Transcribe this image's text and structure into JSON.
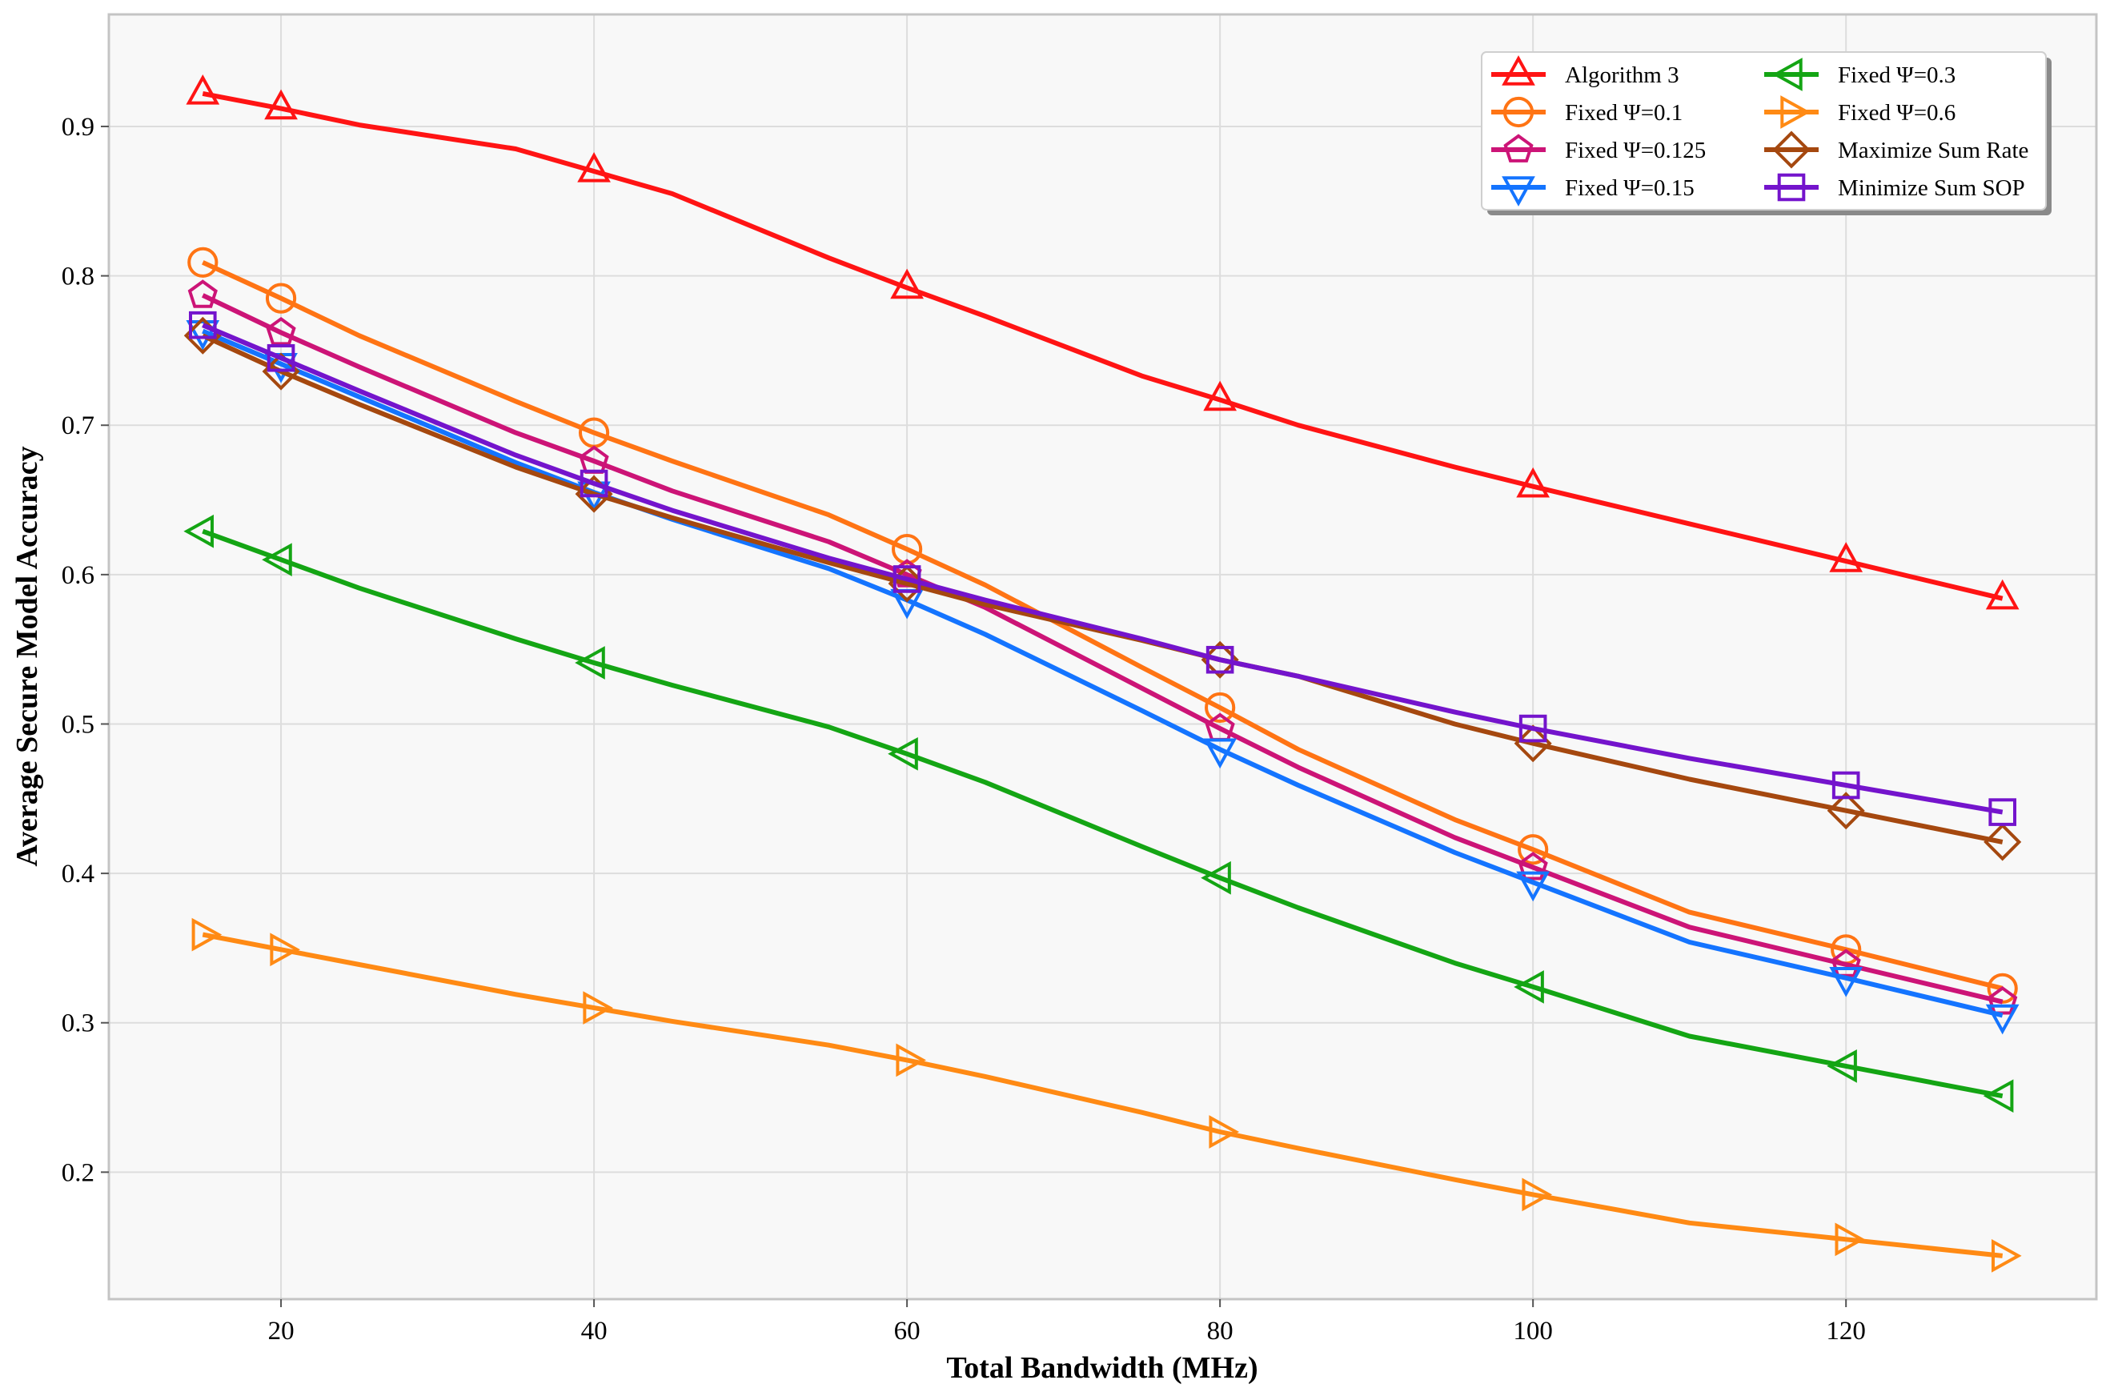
{
  "chart_data": {
    "type": "line",
    "title": "",
    "xlabel": "Total Bandwidth (MHz)",
    "ylabel": "Average Secure Model Accuracy",
    "xlim": [
      9,
      136
    ],
    "ylim": [
      0.115,
      0.975
    ],
    "xticks": [
      20,
      40,
      60,
      80,
      100,
      120
    ],
    "yticks": [
      0.2,
      0.3,
      0.4,
      0.5,
      0.6,
      0.7,
      0.8,
      0.9
    ],
    "grid": true,
    "legend_position": "top-right",
    "series": [
      {
        "name": "Algorithm 3",
        "color": "#ff1414",
        "marker": "triangle-up",
        "x": [
          15,
          20,
          25,
          35,
          40,
          45,
          55,
          60,
          65,
          75,
          80,
          85,
          95,
          100,
          110,
          120,
          130
        ],
        "y": [
          0.922,
          0.912,
          0.901,
          0.885,
          0.87,
          0.855,
          0.812,
          0.792,
          0.773,
          0.733,
          0.717,
          0.7,
          0.672,
          0.659,
          0.634,
          0.609,
          0.584
        ],
        "marker_x": [
          15,
          20,
          40,
          60,
          80,
          100,
          120,
          130
        ]
      },
      {
        "name": "Fixed Ψ=0.1",
        "color": "#ff7414",
        "marker": "circle",
        "x": [
          15,
          20,
          25,
          35,
          40,
          45,
          55,
          60,
          65,
          75,
          80,
          85,
          95,
          100,
          110,
          120,
          130
        ],
        "y": [
          0.809,
          0.785,
          0.76,
          0.716,
          0.695,
          0.676,
          0.64,
          0.617,
          0.593,
          0.538,
          0.511,
          0.483,
          0.436,
          0.416,
          0.374,
          0.349,
          0.323
        ],
        "marker_x": [
          15,
          20,
          40,
          60,
          80,
          100,
          120,
          130
        ]
      },
      {
        "name": "Fixed Ψ=0.125",
        "color": "#cc1477",
        "marker": "pentagon",
        "x": [
          15,
          20,
          25,
          35,
          40,
          45,
          55,
          60,
          65,
          75,
          80,
          85,
          95,
          100,
          110,
          120,
          130
        ],
        "y": [
          0.787,
          0.762,
          0.739,
          0.695,
          0.676,
          0.656,
          0.622,
          0.6,
          0.578,
          0.524,
          0.497,
          0.471,
          0.424,
          0.404,
          0.364,
          0.339,
          0.314
        ],
        "marker_x": [
          15,
          20,
          40,
          60,
          80,
          100,
          120,
          130
        ]
      },
      {
        "name": "Fixed Ψ=0.15",
        "color": "#1474ff",
        "marker": "triangle-down",
        "x": [
          15,
          20,
          25,
          35,
          40,
          45,
          55,
          60,
          65,
          75,
          80,
          85,
          95,
          100,
          110,
          120,
          130
        ],
        "y": [
          0.763,
          0.741,
          0.719,
          0.675,
          0.655,
          0.637,
          0.604,
          0.583,
          0.56,
          0.509,
          0.483,
          0.459,
          0.414,
          0.394,
          0.354,
          0.33,
          0.305
        ],
        "marker_x": [
          15,
          20,
          40,
          60,
          80,
          100,
          120,
          130
        ]
      },
      {
        "name": "Fixed Ψ=0.3",
        "color": "#14a514",
        "marker": "triangle-left",
        "x": [
          15,
          20,
          25,
          35,
          40,
          45,
          55,
          60,
          65,
          75,
          80,
          85,
          95,
          100,
          110,
          120,
          130
        ],
        "y": [
          0.629,
          0.61,
          0.591,
          0.557,
          0.541,
          0.526,
          0.498,
          0.48,
          0.461,
          0.418,
          0.397,
          0.377,
          0.34,
          0.324,
          0.291,
          0.271,
          0.251
        ],
        "marker_x": [
          15,
          20,
          40,
          60,
          80,
          100,
          120,
          130
        ]
      },
      {
        "name": "Fixed Ψ=0.6",
        "color": "#ff8a14",
        "marker": "triangle-right",
        "x": [
          15,
          20,
          25,
          35,
          40,
          45,
          55,
          60,
          65,
          75,
          80,
          85,
          95,
          100,
          110,
          120,
          130
        ],
        "y": [
          0.359,
          0.349,
          0.339,
          0.319,
          0.31,
          0.301,
          0.285,
          0.275,
          0.264,
          0.24,
          0.227,
          0.216,
          0.195,
          0.185,
          0.166,
          0.155,
          0.144
        ],
        "marker_x": [
          15,
          20,
          40,
          60,
          80,
          100,
          120,
          130
        ]
      },
      {
        "name": "Maximize Sum Rate",
        "color": "#a5480f",
        "marker": "diamond",
        "x": [
          15,
          20,
          25,
          35,
          40,
          45,
          55,
          60,
          65,
          75,
          80,
          85,
          95,
          100,
          110,
          120,
          130
        ],
        "y": [
          0.76,
          0.736,
          0.714,
          0.672,
          0.654,
          0.638,
          0.608,
          0.594,
          0.58,
          0.556,
          0.543,
          0.532,
          0.5,
          0.487,
          0.463,
          0.442,
          0.421
        ],
        "marker_x": [
          15,
          20,
          40,
          60,
          80,
          100,
          120,
          130
        ]
      },
      {
        "name": "Minimize Sum SOP",
        "color": "#7414cc",
        "marker": "square",
        "x": [
          15,
          20,
          25,
          35,
          40,
          45,
          55,
          60,
          65,
          75,
          80,
          85,
          95,
          100,
          110,
          120,
          130
        ],
        "y": [
          0.767,
          0.745,
          0.723,
          0.68,
          0.661,
          0.643,
          0.611,
          0.597,
          0.583,
          0.557,
          0.543,
          0.532,
          0.508,
          0.497,
          0.477,
          0.459,
          0.441
        ],
        "marker_x": [
          15,
          20,
          40,
          60,
          80,
          100,
          120,
          130
        ]
      }
    ]
  },
  "colors": {
    "plot_background": "#f8f8f8",
    "grid": "#dddddd",
    "spine": "#c4c4c4"
  }
}
